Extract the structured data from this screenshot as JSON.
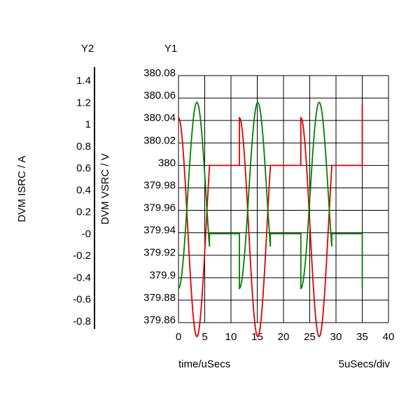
{
  "chart_data": {
    "type": "line",
    "axis_titles": {
      "y2_header": "Y2",
      "y1_header": "Y1"
    },
    "y2": {
      "label": "DVM ISRC / A",
      "ticks": [
        "1.4",
        "1.2",
        "1",
        "0.8",
        "0.6",
        "0.4",
        "0.2",
        "-0",
        "-0.2",
        "-0.4",
        "-0.6",
        "-0.8"
      ],
      "tick_values": [
        1.4,
        1.2,
        1.0,
        0.8,
        0.6,
        0.4,
        0.2,
        0.0,
        -0.2,
        -0.4,
        -0.6,
        -0.8
      ],
      "range": [
        -0.8,
        1.4
      ]
    },
    "y1": {
      "label": "DVM VSRC / V",
      "ticks": [
        "380.08",
        "380.06",
        "380.04",
        "380.02",
        "380",
        "379.98",
        "379.96",
        "379.94",
        "379.92",
        "379.9",
        "379.88",
        "379.86"
      ],
      "tick_values": [
        380.08,
        380.06,
        380.04,
        380.02,
        380.0,
        379.98,
        379.96,
        379.94,
        379.92,
        379.9,
        379.88,
        379.86
      ],
      "range": [
        379.86,
        380.08
      ]
    },
    "x": {
      "label": "time/uSecs",
      "ticks": [
        "0",
        "5",
        "10",
        "15",
        "20",
        "25",
        "30",
        "35",
        "40"
      ],
      "tick_values": [
        0,
        5,
        10,
        15,
        20,
        25,
        30,
        35,
        40
      ],
      "range": [
        0,
        40
      ],
      "scale_note": "5uSecs/div"
    },
    "grid": true,
    "series": [
      {
        "color": "#e00000",
        "axis": "y1",
        "segments": [
          {
            "type": "cosine",
            "t_start": 0.0,
            "t_end": 5.9,
            "period": 7.0,
            "offset": 379.945,
            "amplitude": 0.0975,
            "peak_at": 0.0
          },
          {
            "type": "hold",
            "t_start": 5.9,
            "t_end": 11.6,
            "value": 380.0
          },
          {
            "type": "cosine",
            "t_start": 11.6,
            "t_end": 17.5,
            "period": 7.0,
            "offset": 379.945,
            "amplitude": 0.0975,
            "peak_at": 11.6
          },
          {
            "type": "hold",
            "t_start": 17.5,
            "t_end": 23.3,
            "value": 380.0
          },
          {
            "type": "cosine",
            "t_start": 23.3,
            "t_end": 29.2,
            "period": 7.0,
            "offset": 379.945,
            "amplitude": 0.0975,
            "peak_at": 23.3
          },
          {
            "type": "hold",
            "t_start": 29.2,
            "t_end": 35.0,
            "value": 380.0
          },
          {
            "type": "step",
            "t": 35.0,
            "value": 380.055
          }
        ]
      },
      {
        "color": "#008000",
        "axis": "y2",
        "segments": [
          {
            "type": "cosine",
            "t_start": 0.0,
            "t_end": 5.9,
            "period": 7.0,
            "offset": 0.35,
            "amplitude": 0.85,
            "peak_at": 3.5
          },
          {
            "type": "hold",
            "t_start": 5.9,
            "t_end": 11.6,
            "value": 0.0
          },
          {
            "type": "cosine",
            "t_start": 11.6,
            "t_end": 17.5,
            "period": 7.0,
            "offset": 0.35,
            "amplitude": 0.85,
            "peak_at": 15.1
          },
          {
            "type": "hold",
            "t_start": 17.5,
            "t_end": 23.3,
            "value": 0.0
          },
          {
            "type": "cosine",
            "t_start": 23.3,
            "t_end": 29.2,
            "period": 7.0,
            "offset": 0.35,
            "amplitude": 0.85,
            "peak_at": 26.8
          },
          {
            "type": "hold",
            "t_start": 29.2,
            "t_end": 35.0,
            "value": 0.0
          },
          {
            "type": "step",
            "t": 35.0,
            "value": -0.5
          }
        ]
      }
    ]
  }
}
